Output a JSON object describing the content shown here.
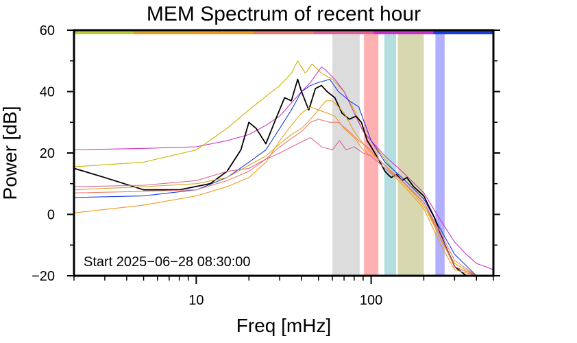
{
  "chart_data": {
    "type": "line",
    "title": "MEM Spectrum of recent hour",
    "xlabel": "Freq [mHz]",
    "ylabel": "Power [dB]",
    "x_scale": "log",
    "xlim": [
      2,
      500
    ],
    "ylim": [
      -20,
      60
    ],
    "x_ticks": [
      10,
      100
    ],
    "x_tick_labels": [
      "10",
      "100"
    ],
    "y_ticks": [
      -20,
      0,
      20,
      40,
      60
    ],
    "y_tick_labels": [
      "−20",
      "0",
      "20",
      "40",
      "60"
    ],
    "annotation": "Start 2025−06−28 08:30:00",
    "band_colors": [
      "#bcc93a",
      "#d9a520",
      "#f39a1a",
      "#f07a6e",
      "#e0629a",
      "#cc33cc",
      "#1a3ce0"
    ],
    "shaded_bands": [
      {
        "from": 60,
        "to": 86,
        "color": "#dcdcdc"
      },
      {
        "from": 91,
        "to": 110,
        "color": "#ffb0b0"
      },
      {
        "from": 119,
        "to": 139,
        "color": "#b4dde0"
      },
      {
        "from": 142,
        "to": 200,
        "color": "#d8d8b0"
      },
      {
        "from": 233,
        "to": 263,
        "color": "#b0b0ff"
      }
    ],
    "series": [
      {
        "color": "#c8b400",
        "points": [
          [
            2,
            15.5
          ],
          [
            5,
            17
          ],
          [
            10,
            21
          ],
          [
            15,
            28
          ],
          [
            20,
            34
          ],
          [
            30,
            42
          ],
          [
            35,
            46
          ],
          [
            38,
            50
          ],
          [
            42,
            46
          ],
          [
            46,
            49
          ],
          [
            52,
            46
          ],
          [
            60,
            44
          ],
          [
            70,
            40
          ],
          [
            80,
            34
          ],
          [
            90,
            27
          ],
          [
            100,
            24
          ],
          [
            120,
            18
          ],
          [
            150,
            11
          ],
          [
            200,
            4
          ],
          [
            250,
            -8
          ],
          [
            300,
            -16
          ],
          [
            400,
            -20
          ],
          [
            500,
            -20
          ]
        ]
      },
      {
        "color": "#cc33cc",
        "points": [
          [
            2,
            21
          ],
          [
            5,
            21.5
          ],
          [
            10,
            22
          ],
          [
            15,
            24
          ],
          [
            20,
            26
          ],
          [
            25,
            29
          ],
          [
            30,
            32
          ],
          [
            40,
            40
          ],
          [
            45,
            43
          ],
          [
            52,
            48
          ],
          [
            55,
            47
          ],
          [
            62,
            44
          ],
          [
            70,
            40
          ],
          [
            80,
            33
          ],
          [
            90,
            27
          ],
          [
            100,
            24
          ],
          [
            120,
            19
          ],
          [
            150,
            14
          ],
          [
            200,
            7
          ],
          [
            250,
            -2
          ],
          [
            300,
            -9
          ],
          [
            350,
            -13
          ],
          [
            400,
            -16
          ],
          [
            450,
            -17
          ],
          [
            500,
            -18
          ]
        ]
      },
      {
        "color": "#1a3ce0",
        "points": [
          [
            2,
            5.5
          ],
          [
            5,
            6
          ],
          [
            10,
            8
          ],
          [
            15,
            12
          ],
          [
            20,
            17
          ],
          [
            25,
            21
          ],
          [
            30,
            28
          ],
          [
            35,
            34
          ],
          [
            40,
            40
          ],
          [
            45,
            42
          ],
          [
            50,
            43
          ],
          [
            58,
            44
          ],
          [
            65,
            40
          ],
          [
            75,
            37
          ],
          [
            85,
            35
          ],
          [
            90,
            31
          ],
          [
            100,
            24
          ],
          [
            120,
            17
          ],
          [
            150,
            12
          ],
          [
            200,
            5
          ],
          [
            250,
            -5
          ],
          [
            300,
            -13
          ],
          [
            400,
            -20
          ],
          [
            500,
            -20
          ]
        ]
      },
      {
        "color": "#000000",
        "points": [
          [
            2,
            15
          ],
          [
            3,
            12
          ],
          [
            5,
            8
          ],
          [
            8,
            8
          ],
          [
            12,
            10
          ],
          [
            15,
            14
          ],
          [
            18,
            21
          ],
          [
            20,
            30
          ],
          [
            22,
            28
          ],
          [
            25,
            23
          ],
          [
            28,
            30
          ],
          [
            32,
            38
          ],
          [
            35,
            37
          ],
          [
            38,
            44
          ],
          [
            40,
            40
          ],
          [
            44,
            34
          ],
          [
            48,
            41
          ],
          [
            52,
            42
          ],
          [
            56,
            40
          ],
          [
            62,
            38
          ],
          [
            68,
            33
          ],
          [
            75,
            31
          ],
          [
            82,
            32
          ],
          [
            88,
            30
          ],
          [
            95,
            24
          ],
          [
            100,
            22
          ],
          [
            110,
            18
          ],
          [
            120,
            14
          ],
          [
            130,
            12
          ],
          [
            140,
            13
          ],
          [
            150,
            11
          ],
          [
            160,
            12
          ],
          [
            175,
            9
          ],
          [
            200,
            6
          ],
          [
            230,
            -1
          ],
          [
            260,
            -9
          ],
          [
            300,
            -17
          ],
          [
            350,
            -20
          ],
          [
            500,
            -20
          ]
        ]
      },
      {
        "color": "#f39a1a",
        "points": [
          [
            2,
            0.5
          ],
          [
            5,
            3
          ],
          [
            10,
            6
          ],
          [
            15,
            9
          ],
          [
            20,
            12
          ],
          [
            25,
            17
          ],
          [
            30,
            24
          ],
          [
            35,
            29
          ],
          [
            40,
            33
          ],
          [
            45,
            35
          ],
          [
            50,
            34
          ],
          [
            56,
            33
          ],
          [
            62,
            32
          ],
          [
            70,
            28
          ],
          [
            80,
            25
          ],
          [
            90,
            21
          ],
          [
            100,
            19
          ],
          [
            120,
            15
          ],
          [
            150,
            10
          ],
          [
            200,
            2
          ],
          [
            250,
            -10
          ],
          [
            300,
            -18
          ],
          [
            400,
            -20
          ],
          [
            500,
            -20
          ]
        ]
      },
      {
        "color": "#d9a520",
        "points": [
          [
            2,
            8
          ],
          [
            5,
            9
          ],
          [
            10,
            10
          ],
          [
            15,
            12
          ],
          [
            20,
            16
          ],
          [
            25,
            19
          ],
          [
            30,
            23
          ],
          [
            35,
            26
          ],
          [
            40,
            28
          ],
          [
            45,
            31
          ],
          [
            50,
            34
          ],
          [
            55,
            37
          ],
          [
            60,
            37
          ],
          [
            65,
            35
          ],
          [
            70,
            33
          ],
          [
            80,
            27
          ],
          [
            90,
            23
          ],
          [
            100,
            20
          ],
          [
            120,
            16
          ],
          [
            150,
            11
          ],
          [
            200,
            3
          ],
          [
            250,
            -8
          ],
          [
            300,
            -17
          ],
          [
            400,
            -20
          ],
          [
            500,
            -20
          ]
        ]
      },
      {
        "color": "#f07a6e",
        "points": [
          [
            2,
            7
          ],
          [
            5,
            7.5
          ],
          [
            10,
            8
          ],
          [
            15,
            11
          ],
          [
            20,
            14
          ],
          [
            25,
            18
          ],
          [
            30,
            22
          ],
          [
            40,
            27
          ],
          [
            45,
            30
          ],
          [
            50,
            31
          ],
          [
            58,
            30
          ],
          [
            65,
            30
          ],
          [
            75,
            27
          ],
          [
            85,
            24
          ],
          [
            95,
            22
          ],
          [
            110,
            18
          ],
          [
            130,
            14
          ],
          [
            150,
            11
          ],
          [
            200,
            4
          ],
          [
            250,
            -6
          ],
          [
            300,
            -15
          ],
          [
            400,
            -20
          ],
          [
            500,
            -20
          ]
        ]
      },
      {
        "color": "#e0629a",
        "points": [
          [
            2,
            9
          ],
          [
            5,
            9.5
          ],
          [
            10,
            11
          ],
          [
            15,
            14
          ],
          [
            20,
            15
          ],
          [
            25,
            18
          ],
          [
            30,
            20
          ],
          [
            38,
            23
          ],
          [
            45,
            25
          ],
          [
            52,
            22
          ],
          [
            60,
            21
          ],
          [
            66,
            24
          ],
          [
            72,
            21
          ],
          [
            80,
            22
          ],
          [
            90,
            20
          ],
          [
            100,
            19
          ],
          [
            120,
            15
          ],
          [
            150,
            11
          ],
          [
            200,
            4
          ],
          [
            250,
            -7
          ],
          [
            300,
            -17
          ],
          [
            400,
            -20
          ],
          [
            500,
            -20
          ]
        ]
      }
    ]
  }
}
